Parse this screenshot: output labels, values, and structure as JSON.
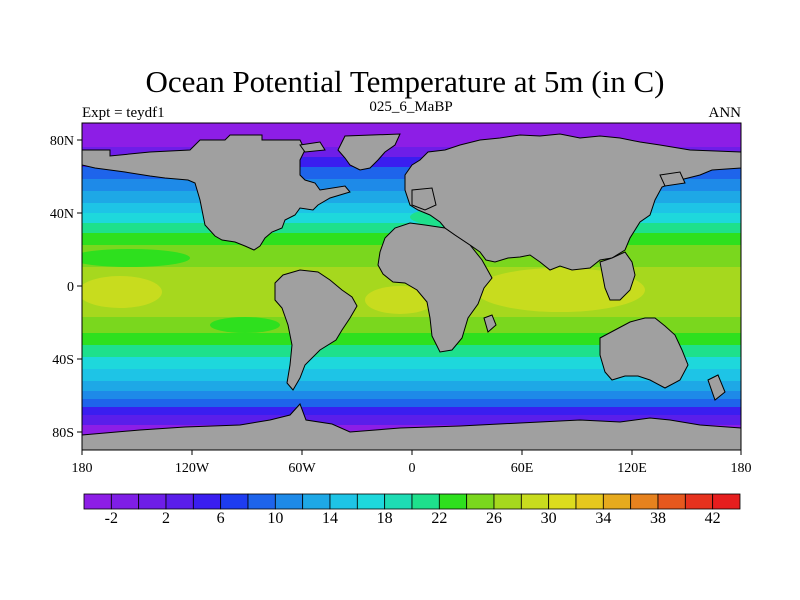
{
  "title": "Ocean Potential Temperature at 5m (in C)",
  "subtitle_left": "Expt = teydf1",
  "subtitle_center": "025_6_MaBP",
  "subtitle_right": "ANN",
  "colors": {
    "land": "#a0a0a0",
    "palette": [
      "#8d1ee6",
      "#7f1ee6",
      "#6e1ee8",
      "#5a1eea",
      "#3a1ef0",
      "#1e3cf0",
      "#1e64eb",
      "#1e8ae8",
      "#1ea8e6",
      "#1ec4e6",
      "#1ed8dc",
      "#1edcb4",
      "#1ee08c",
      "#2ee01e",
      "#7ad71e",
      "#a6d81e",
      "#c8dc1e",
      "#dcdc1e",
      "#e6c81e",
      "#e6aa1e",
      "#e6821e",
      "#e6581e",
      "#e6321e",
      "#e61e1e"
    ]
  },
  "chart_data": {
    "type": "heatmap",
    "title": "Ocean Potential Temperature at 5m (in C)",
    "subtitle_left": "Expt = teydf1",
    "subtitle_center": "025_6_MaBP",
    "subtitle_right": "ANN",
    "x_ticks": [
      "180",
      "120W",
      "60W",
      "0",
      "60E",
      "120E",
      "180"
    ],
    "y_ticks": [
      "80N",
      "40N",
      "0",
      "40S",
      "80S"
    ],
    "xlim": [
      -180,
      180
    ],
    "ylim": [
      -90,
      90
    ],
    "colorbar": {
      "min": -4,
      "max": 44,
      "step": 2,
      "tick_labels": [
        "-2",
        "2",
        "6",
        "10",
        "14",
        "18",
        "22",
        "26",
        "30",
        "34",
        "38",
        "42"
      ],
      "tick_values": [
        -2,
        2,
        6,
        10,
        14,
        18,
        22,
        26,
        30,
        34,
        38,
        42
      ]
    }
  }
}
